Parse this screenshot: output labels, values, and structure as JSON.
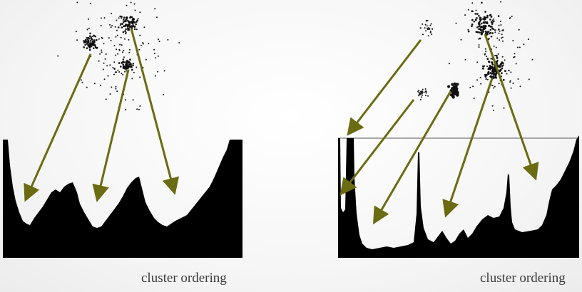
{
  "captions": {
    "left": "cluster ordering",
    "right": "cluster ordering"
  },
  "colors": {
    "background": "#f4f4f4",
    "plot_fill": "#000000",
    "arrow": "#6b6b12",
    "points": "#111111"
  },
  "left_panel": {
    "point_clusters": 3,
    "arrows": 3
  },
  "right_panel": {
    "point_clusters": 5,
    "arrows": 5
  }
}
